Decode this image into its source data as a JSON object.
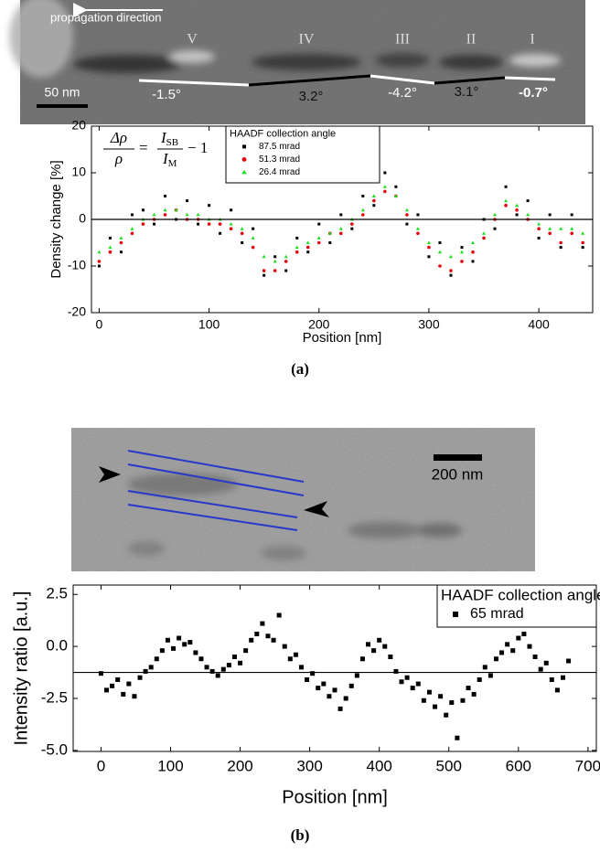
{
  "images": {
    "panel_a": {
      "direction_label": "propagation direction",
      "regions": [
        "V",
        "IV",
        "III",
        "II",
        "I"
      ],
      "angles": [
        "-1.5°",
        "3.2°",
        "-4.2°",
        "3.1°",
        "-0.7°"
      ],
      "scale_bar": "50 nm"
    },
    "panel_b": {
      "scale_bar": "200 nm"
    }
  },
  "captions": [
    "(a)",
    "(b)"
  ],
  "chart_data": [
    {
      "type": "scatter",
      "formula": {
        "numerator": "Δρ",
        "denominator": "ρ",
        "equals": "=",
        "ratio_numerator": "I",
        "ratio_numerator_sub": "SB",
        "ratio_denominator": "I",
        "ratio_denominator_sub": "M",
        "tail": "− 1"
      },
      "x_label": "Position [nm]",
      "y_label": "Density change [%]",
      "xlim": [
        -7,
        449
      ],
      "ylim": [
        -20,
        20
      ],
      "xticks": [
        0,
        100,
        200,
        300,
        400
      ],
      "yticks": [
        -20,
        -10,
        0,
        10,
        20
      ],
      "reference_line": 0,
      "legend_title": "HAADF collection angle",
      "legend": "top-center",
      "x": [
        0,
        10,
        20,
        30,
        40,
        50,
        60,
        70,
        80,
        90,
        100,
        110,
        120,
        130,
        140,
        150,
        160,
        170,
        180,
        190,
        200,
        210,
        220,
        230,
        240,
        250,
        260,
        270,
        280,
        290,
        300,
        310,
        320,
        330,
        340,
        350,
        360,
        370,
        380,
        390,
        400,
        410,
        420,
        430,
        440
      ],
      "series": [
        {
          "name": "87.5 mrad",
          "color": "#000000",
          "marker": "square",
          "values": [
            -10,
            -4,
            -7,
            1,
            2,
            -1,
            5,
            0,
            4,
            -1,
            3,
            -3,
            2,
            -5,
            -2,
            -12,
            -8,
            -11,
            -4,
            -7,
            -1,
            -5,
            1,
            -2,
            5,
            3,
            10,
            7,
            -1,
            1,
            -8,
            -5,
            -12,
            -6,
            -9,
            0,
            -2,
            7,
            1,
            4,
            -4,
            1,
            -6,
            1,
            -6
          ]
        },
        {
          "name": "51.3 mrad",
          "color": "#e8000b",
          "marker": "circle",
          "values": [
            -9,
            -7,
            -5,
            -3,
            -1,
            0,
            1,
            2,
            0,
            0,
            -1,
            -1,
            -2,
            -3,
            -6,
            -11,
            -11,
            -9,
            -7,
            -6,
            -5,
            -3,
            -3,
            -1,
            1,
            4,
            6,
            5,
            1,
            -3,
            -6,
            -10,
            -11,
            -9,
            -7,
            -4,
            0,
            3,
            2,
            0,
            -2,
            -3,
            -5,
            -3,
            -5
          ]
        },
        {
          "name": "26.4 mrad",
          "color": "#22dd22",
          "marker": "triangle",
          "values": [
            -7,
            -6,
            -4,
            -2,
            0,
            1,
            2,
            2,
            1,
            1,
            0,
            0,
            -1,
            -2,
            -4,
            -8,
            -9,
            -8,
            -6,
            -5,
            -4,
            -3,
            -2,
            0,
            2,
            5,
            7,
            5,
            2,
            -2,
            -5,
            -7,
            -8,
            -7,
            -5,
            -3,
            1,
            4,
            3,
            1,
            -1,
            -2,
            -2,
            -2,
            -3
          ]
        }
      ]
    },
    {
      "type": "scatter",
      "x_label": "Position [nm]",
      "y_label": "Intensity ratio [a.u.]",
      "xlim": [
        -40,
        712
      ],
      "ylim": [
        -5.05,
        2.95
      ],
      "xticks": [
        0,
        100,
        200,
        300,
        400,
        500,
        600,
        700
      ],
      "yticks": [
        2.5,
        {
          "value": 0,
          "label": "0.0"
        },
        -2.5,
        {
          "value": -5,
          "label": "-5.0"
        }
      ],
      "reference_line": -1.25,
      "legend_title": "HAADF collection angle",
      "legend": "top-right",
      "x": [
        0,
        8,
        16,
        24,
        32,
        40,
        48,
        56,
        64,
        72,
        80,
        88,
        96,
        104,
        112,
        120,
        128,
        136,
        144,
        152,
        160,
        168,
        176,
        184,
        192,
        200,
        208,
        216,
        224,
        232,
        240,
        248,
        256,
        264,
        272,
        280,
        288,
        296,
        304,
        312,
        320,
        328,
        336,
        344,
        352,
        360,
        368,
        376,
        384,
        392,
        400,
        408,
        416,
        424,
        432,
        440,
        448,
        456,
        464,
        472,
        480,
        488,
        496,
        504,
        512,
        520,
        528,
        536,
        544,
        552,
        560,
        568,
        576,
        584,
        592,
        600,
        608,
        616,
        624,
        632,
        640,
        648,
        656,
        664,
        672
      ],
      "series": [
        {
          "name": "65 mrad",
          "color": "#000000",
          "marker": "square",
          "values": [
            -1.3,
            -2.1,
            -1.9,
            -1.6,
            -2.3,
            -1.8,
            -2.4,
            -1.5,
            -1.2,
            -1.0,
            -0.6,
            -0.2,
            0.3,
            -0.1,
            0.4,
            0.1,
            0.2,
            -0.3,
            -0.6,
            -1.0,
            -1.2,
            -1.4,
            -1.1,
            -0.9,
            -0.5,
            -0.8,
            -0.2,
            0.3,
            0.6,
            1.1,
            0.5,
            0.3,
            1.5,
            0.0,
            -0.6,
            -0.4,
            -1.0,
            -1.6,
            -1.3,
            -2.0,
            -1.8,
            -2.4,
            -2.1,
            -3.0,
            -2.5,
            -1.9,
            -1.4,
            -0.6,
            0.1,
            -0.2,
            0.3,
            0.0,
            -0.5,
            -1.2,
            -1.7,
            -1.5,
            -2.0,
            -1.8,
            -2.6,
            -2.2,
            -2.9,
            -2.4,
            -3.3,
            -2.7,
            -4.4,
            -2.6,
            -2.0,
            -2.3,
            -1.6,
            -1.0,
            -1.4,
            -0.6,
            -0.3,
            0.1,
            -0.2,
            0.4,
            0.6,
            0.0,
            -0.5,
            -1.1,
            -0.8,
            -1.6,
            -2.1,
            -1.5,
            -0.7
          ]
        }
      ]
    }
  ]
}
